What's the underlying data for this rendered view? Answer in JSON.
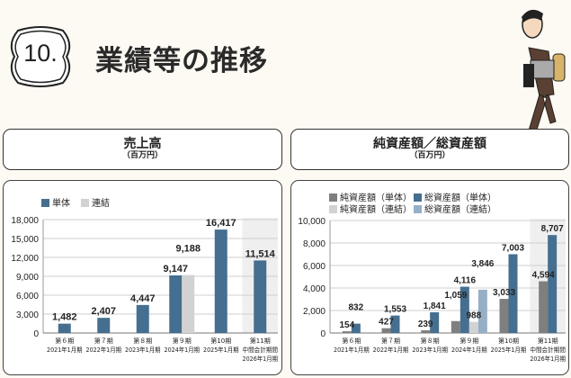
{
  "header": {
    "number": "10.",
    "title": "業績等の推移"
  },
  "sections": [
    {
      "title": "売上高",
      "unit": "（百万円）"
    },
    {
      "title": "純資産額／総資産額",
      "unit": "（百万円）"
    }
  ],
  "chart_data": [
    {
      "type": "bar",
      "title": "売上高",
      "ylabel": "（百万円）",
      "ylim": [
        0,
        18000
      ],
      "yticks": [
        0,
        3000,
        6000,
        9000,
        12000,
        15000,
        18000
      ],
      "ytick_labels": [
        "0",
        "3,000",
        "6,000",
        "9,000",
        "12,000",
        "15,000",
        "18,000"
      ],
      "grid": true,
      "legend": "top-left",
      "highlight_last_category": true,
      "categories": [
        [
          "第６期",
          "2021年1月期"
        ],
        [
          "第７期",
          "2022年1月期"
        ],
        [
          "第８期",
          "2023年1月期"
        ],
        [
          "第９期",
          "2024年1月期"
        ],
        [
          "第10期",
          "2025年1月期"
        ],
        [
          "第11期",
          "中間会計期間",
          "2026年1月期"
        ]
      ],
      "series": [
        {
          "name": "単体",
          "color": "#456f90",
          "values": [
            1482,
            2407,
            4447,
            9147,
            16417,
            11514
          ],
          "labels": [
            "1,482",
            "2,407",
            "4,447",
            "9,147",
            "16,417",
            "11,514"
          ]
        },
        {
          "name": "連結",
          "color": "#d2d2d2",
          "values": [
            null,
            null,
            null,
            9188,
            null,
            null
          ],
          "labels": [
            null,
            null,
            null,
            "9,188",
            null,
            null
          ]
        }
      ]
    },
    {
      "type": "bar",
      "title": "純資産額／総資産額",
      "ylabel": "（百万円）",
      "ylim": [
        0,
        10000
      ],
      "yticks": [
        0,
        2000,
        4000,
        6000,
        8000,
        10000
      ],
      "ytick_labels": [
        "0",
        "2,000",
        "4,000",
        "6,000",
        "8,000",
        "10,000"
      ],
      "grid": true,
      "legend": "top-left",
      "highlight_last_category": true,
      "categories": [
        [
          "第６期",
          "2021年1月期"
        ],
        [
          "第７期",
          "2022年1月期"
        ],
        [
          "第８期",
          "2023年1月期"
        ],
        [
          "第９期",
          "2024年1月期"
        ],
        [
          "第10期",
          "2025年1月期"
        ],
        [
          "第11期",
          "中間会計期間",
          "2026年1月期"
        ]
      ],
      "series": [
        {
          "name": "純資産額（単体）",
          "color": "#7f7f7f",
          "values": [
            154,
            427,
            239,
            1059,
            3033,
            4594
          ],
          "labels": [
            "154",
            "427",
            "239",
            "1,059",
            "3,033",
            "4,594"
          ]
        },
        {
          "name": "総資産額（単体）",
          "color": "#456f90",
          "values": [
            832,
            1553,
            1841,
            4116,
            7003,
            8707
          ],
          "labels": [
            "832",
            "1,553",
            "1,841",
            "4,116",
            "7,003",
            "8,707"
          ]
        },
        {
          "name": "純資産額（連結）",
          "color": "#d2d2d2",
          "values": [
            null,
            null,
            null,
            988,
            null,
            null
          ],
          "labels": [
            null,
            null,
            null,
            "988",
            null,
            null
          ]
        },
        {
          "name": "総資産額（連結）",
          "color": "#97afc6",
          "values": [
            null,
            null,
            null,
            3846,
            null,
            null
          ],
          "labels": [
            null,
            null,
            null,
            "3,846",
            null,
            null
          ]
        }
      ]
    }
  ]
}
